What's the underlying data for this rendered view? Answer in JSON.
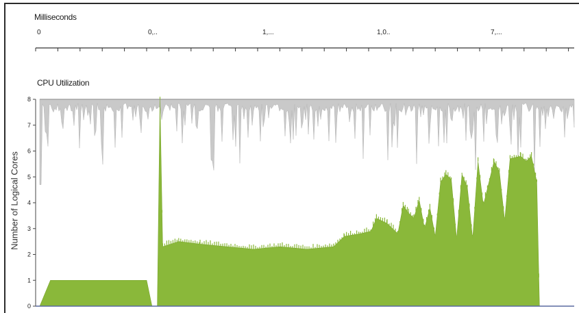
{
  "ruler": {
    "title": "Milliseconds",
    "labels": [
      "0",
      "0,..",
      "1,...",
      "1,0..",
      "7,..."
    ]
  },
  "chart_data": {
    "type": "area",
    "title": "CPU Utilization",
    "xlabel": "",
    "ylabel": "Number of Logical Cores",
    "ylim": [
      0,
      8
    ],
    "y_ticks": [
      "0",
      "1",
      "2",
      "3",
      "4",
      "5",
      "6",
      "7",
      "8"
    ],
    "series": [
      {
        "color": "#8ab83a",
        "x": [
          0,
          2,
          3,
          20,
          21,
          22,
          22.5,
          23,
          26,
          30,
          35,
          40,
          45,
          50,
          55,
          57,
          60,
          62,
          63,
          65,
          67,
          68,
          69,
          70,
          71,
          72,
          73,
          74,
          75,
          76,
          77,
          78,
          79,
          80,
          81,
          82,
          83,
          85,
          86,
          87,
          88,
          90,
          91,
          92,
          93,
          93.5,
          94,
          100
        ],
        "values": [
          0,
          1,
          1,
          1,
          0,
          0,
          8,
          2.3,
          2.5,
          2.4,
          2.3,
          2.2,
          2.3,
          2.2,
          2.3,
          2.7,
          2.8,
          2.9,
          3.4,
          3.2,
          2.8,
          3.9,
          3.6,
          3.4,
          4.1,
          3.0,
          3.8,
          2.7,
          4.8,
          5.1,
          4.9,
          2.6,
          5.1,
          4.6,
          2.6,
          5.6,
          3.9,
          5.6,
          5.2,
          3.3,
          5.7,
          5.8,
          5.6,
          5.8,
          4.8,
          0,
          0,
          0
        ]
      }
    ]
  }
}
